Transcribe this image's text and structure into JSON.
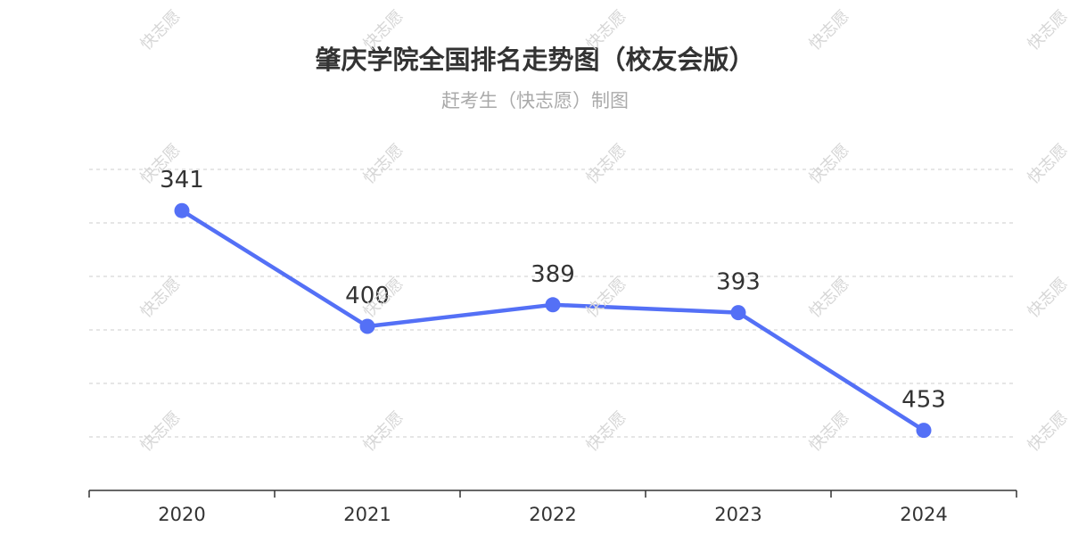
{
  "title": "肇庆学院全国排名走势图（校友会版）",
  "subtitle": "赶考生（快志愿）制图",
  "watermark_text": "快志愿",
  "colors": {
    "line": "#5470f6",
    "grid": "#cccccc",
    "axis": "#333333",
    "title": "#333333",
    "subtitle": "#aaaaaa"
  },
  "chart_data": {
    "type": "line",
    "categories": [
      "2020",
      "2021",
      "2022",
      "2023",
      "2024"
    ],
    "series": [
      {
        "values": [
          341,
          400,
          389,
          393,
          453
        ]
      }
    ],
    "ylim": [
      320,
      470
    ],
    "y_inverted": true,
    "grid": true,
    "legend": "none",
    "xlabel": "",
    "ylabel": ""
  }
}
